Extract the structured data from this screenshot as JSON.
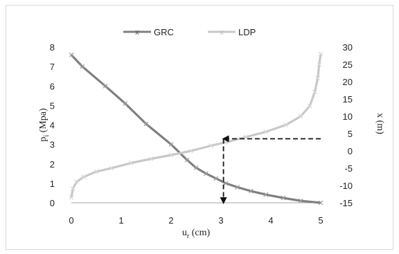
{
  "chart_data": {
    "type": "line",
    "xlabel": "u_r (cm)",
    "ylabel": "p_i (Mpa)",
    "y2label": "x (m)",
    "xlim": [
      0,
      5
    ],
    "ylim": [
      0,
      8
    ],
    "y2lim": [
      -15,
      30
    ],
    "xticks": [
      "0",
      "1",
      "2",
      "3",
      "4",
      "5"
    ],
    "yticks": [
      "0",
      "1",
      "2",
      "3",
      "4",
      "5",
      "6",
      "7",
      "8"
    ],
    "y2ticks": [
      "-15",
      "-10",
      "-5",
      "0",
      "5",
      "10",
      "15",
      "20",
      "25",
      "30"
    ],
    "grid": false,
    "legend_position": "top",
    "series": [
      {
        "name": "GRC",
        "axis": "left",
        "color": "#7f7f7f",
        "marker": "x",
        "x": [
          0,
          0.22,
          0.68,
          1.08,
          1.5,
          2.0,
          2.32,
          2.5,
          2.7,
          2.9,
          3.1,
          3.33,
          3.6,
          3.9,
          4.25,
          4.6,
          5.0
        ],
        "y": [
          7.6,
          7.0,
          6.0,
          5.1,
          4.05,
          3.0,
          2.2,
          1.8,
          1.5,
          1.25,
          1.0,
          0.8,
          0.6,
          0.42,
          0.25,
          0.1,
          0.0
        ]
      },
      {
        "name": "LDP",
        "axis": "right",
        "color": "#c8c8c8",
        "marker": "x",
        "x": [
          0.0,
          0.03,
          0.1,
          0.25,
          0.5,
          0.8,
          1.2,
          1.6,
          2.0,
          2.4,
          2.8,
          3.1,
          3.5,
          3.9,
          4.3,
          4.6,
          4.78,
          4.88,
          4.94,
          4.97,
          5.0
        ],
        "y": [
          -13.5,
          -11,
          -9,
          -7.5,
          -6,
          -5,
          -3.5,
          -2.3,
          -1.2,
          0,
          1.5,
          2.5,
          4,
          5.5,
          7.5,
          10,
          13,
          17,
          21,
          25,
          28
        ]
      }
    ],
    "annotations": [
      {
        "type": "dashed-arrow",
        "from": {
          "x": 5,
          "y2": 3.5
        },
        "to": {
          "x": 3.05,
          "y2": 3.5
        }
      },
      {
        "type": "dashed-arrow",
        "from": {
          "x": 3.05,
          "y2": 3.5
        },
        "to": {
          "x": 3.05,
          "y2": -15
        }
      }
    ]
  }
}
